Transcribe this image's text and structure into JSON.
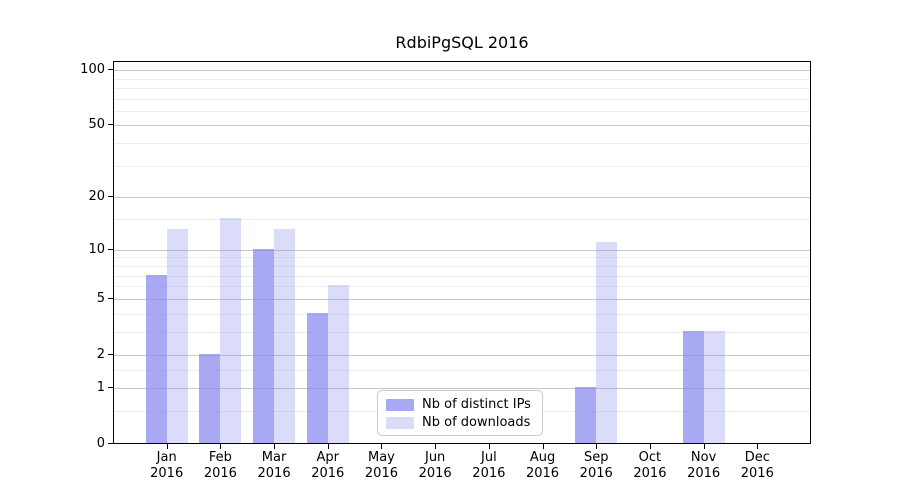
{
  "chart_data": {
    "type": "bar",
    "title": "RdbiPgSQL 2016",
    "categories": [
      "Jan 2016",
      "Feb 2016",
      "Mar 2016",
      "Apr 2016",
      "May 2016",
      "Jun 2016",
      "Jul 2016",
      "Aug 2016",
      "Sep 2016",
      "Oct 2016",
      "Nov 2016",
      "Dec 2016"
    ],
    "series": [
      {
        "name": "Nb of distinct IPs",
        "color": "rgba(136,136,238,0.72)",
        "values": [
          7,
          2,
          10,
          4,
          0,
          0,
          0,
          0,
          1,
          0,
          3,
          0
        ]
      },
      {
        "name": "Nb of downloads",
        "color": "rgba(136,136,238,0.30)",
        "values": [
          13,
          15,
          13,
          6,
          0,
          0,
          0,
          0,
          11,
          0,
          3,
          0
        ]
      }
    ],
    "xlabel": "",
    "ylabel": "",
    "y_axis": {
      "scale": "log1p",
      "ticks": [
        100,
        50,
        20,
        10,
        5,
        2,
        1,
        0
      ],
      "minor_ticks": [
        90,
        80,
        70,
        60,
        40,
        30,
        15,
        9,
        8,
        7,
        6,
        4,
        3,
        1.5,
        0.5
      ],
      "top_value": 112,
      "ylim": [
        0,
        112
      ]
    },
    "grid": true,
    "legend_position": "lower center",
    "colors": {
      "major_grid": "#c9c9c9",
      "minor_grid": "#ededed",
      "axis": "#000000",
      "background": "#ffffff"
    }
  }
}
